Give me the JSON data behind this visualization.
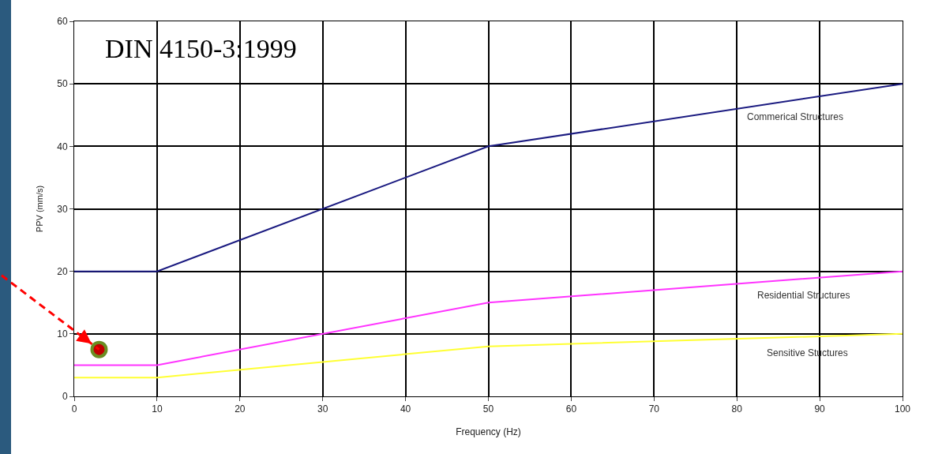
{
  "chart_data": {
    "type": "line",
    "xlabel": "Frequency (Hz)",
    "ylabel": "PPV (mm/s)",
    "x": [
      0,
      10,
      50,
      100
    ],
    "series": [
      {
        "color": "#1a1a80",
        "values": [
          20,
          20,
          40,
          50
        ]
      },
      {
        "color": "#ff33ff",
        "values": [
          5,
          5,
          15,
          20
        ]
      },
      {
        "color": "#ffff33",
        "values": [
          3,
          3,
          8,
          10
        ]
      },
      {
        "type": "scatter",
        "x": [
          3
        ],
        "color": "#c00000",
        "values": [
          7.5
        ],
        "marker": "circle"
      }
    ],
    "annotations": [
      "DIN 4150-3:1999",
      "Commerical Structures",
      "Residential Structures",
      "Sensitive Stuctures"
    ],
    "xlim": [
      0,
      100
    ],
    "xticks": [
      0,
      10,
      20,
      30,
      40,
      50,
      60,
      70,
      80,
      90,
      100
    ],
    "ylim": [
      0,
      60
    ],
    "yticks": [
      0,
      10,
      20,
      30,
      40,
      50,
      60
    ],
    "grid": true,
    "line_style": "solid"
  }
}
